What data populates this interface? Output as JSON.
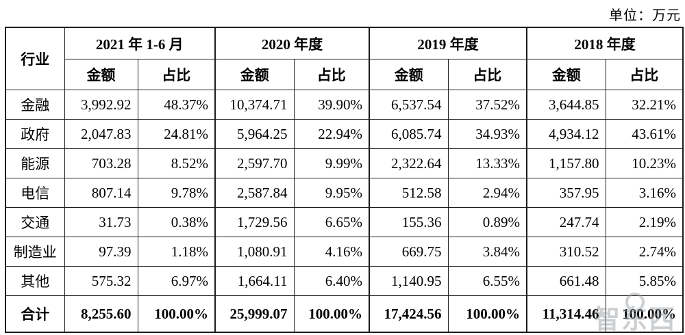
{
  "unit_label": "单位：万元",
  "watermark": {
    "text": "智东西"
  },
  "table": {
    "industry_header": "行业",
    "period_headers": [
      "2021 年 1-6 月",
      "2020 年度",
      "2019 年度",
      "2018 年度"
    ],
    "col_headers": [
      "金额",
      "占比"
    ],
    "rows": [
      {
        "industry": "金融",
        "values": [
          "3,992.92",
          "48.37%",
          "10,374.71",
          "39.90%",
          "6,537.54",
          "37.52%",
          "3,644.85",
          "32.21%"
        ]
      },
      {
        "industry": "政府",
        "values": [
          "2,047.83",
          "24.81%",
          "5,964.25",
          "22.94%",
          "6,085.74",
          "34.93%",
          "4,934.12",
          "43.61%"
        ]
      },
      {
        "industry": "能源",
        "values": [
          "703.28",
          "8.52%",
          "2,597.70",
          "9.99%",
          "2,322.64",
          "13.33%",
          "1,157.80",
          "10.23%"
        ]
      },
      {
        "industry": "电信",
        "values": [
          "807.14",
          "9.78%",
          "2,587.84",
          "9.95%",
          "512.58",
          "2.94%",
          "357.95",
          "3.16%"
        ]
      },
      {
        "industry": "交通",
        "values": [
          "31.73",
          "0.38%",
          "1,729.56",
          "6.65%",
          "155.36",
          "0.89%",
          "247.74",
          "2.19%"
        ]
      },
      {
        "industry": "制造业",
        "values": [
          "97.39",
          "1.18%",
          "1,080.91",
          "4.16%",
          "669.75",
          "3.84%",
          "310.52",
          "2.74%"
        ]
      },
      {
        "industry": "其他",
        "values": [
          "575.32",
          "6.97%",
          "1,664.11",
          "6.40%",
          "1,140.95",
          "6.55%",
          "661.48",
          "5.85%"
        ]
      }
    ],
    "total_row": {
      "industry": "合计",
      "values": [
        "8,255.60",
        "100.00%",
        "25,999.07",
        "100.00%",
        "17,424.56",
        "100.00%",
        "11,314.46",
        "100.00%"
      ]
    }
  }
}
